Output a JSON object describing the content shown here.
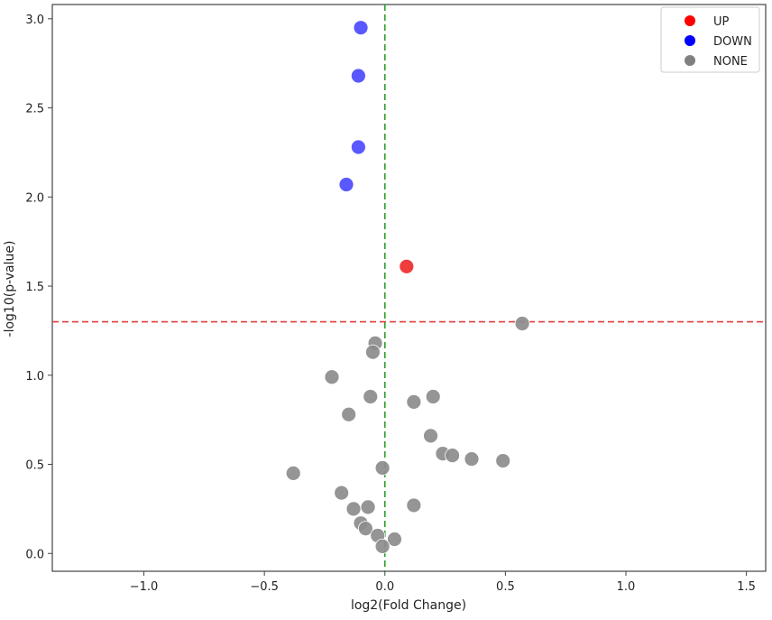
{
  "chart_data": {
    "type": "scatter",
    "title": "",
    "xlabel": "log2(Fold Change)",
    "ylabel": "-log10(p-value)",
    "xlim": [
      -1.38,
      1.58
    ],
    "ylim": [
      -0.1,
      3.08
    ],
    "x_ticks": [
      -1.0,
      -0.5,
      0.0,
      0.5,
      1.0,
      1.5
    ],
    "x_tick_labels": [
      "−1.0",
      "−0.5",
      "0.0",
      "0.5",
      "1.0",
      "1.5"
    ],
    "y_ticks": [
      0.0,
      0.5,
      1.0,
      1.5,
      2.0,
      2.5,
      3.0
    ],
    "y_tick_labels": [
      "0.0",
      "0.5",
      "1.0",
      "1.5",
      "2.0",
      "2.5",
      "3.0"
    ],
    "grid": false,
    "legend_position": "top-right",
    "threshold_lines": [
      {
        "orientation": "horizontal",
        "value": 1.3,
        "color": "#e03b3b",
        "style": "dashed"
      },
      {
        "orientation": "vertical",
        "value": 0.0,
        "color": "#2ca02c",
        "style": "dashed"
      }
    ],
    "series": [
      {
        "name": "UP",
        "color": "#ee2c2c",
        "legend_color": "#ff0000",
        "points": [
          [
            0.09,
            1.61
          ]
        ]
      },
      {
        "name": "DOWN",
        "color": "#4b4bff",
        "legend_color": "#0000ff",
        "points": [
          [
            -0.1,
            2.95
          ],
          [
            -0.11,
            2.68
          ],
          [
            -0.11,
            2.28
          ],
          [
            -0.16,
            2.07
          ]
        ]
      },
      {
        "name": "NONE",
        "color": "#8c8c8c",
        "legend_color": "#808080",
        "points": [
          [
            0.57,
            1.29
          ],
          [
            -0.04,
            1.18
          ],
          [
            -0.05,
            1.13
          ],
          [
            -0.22,
            0.99
          ],
          [
            -0.06,
            0.88
          ],
          [
            0.12,
            0.85
          ],
          [
            0.2,
            0.88
          ],
          [
            -0.15,
            0.78
          ],
          [
            0.19,
            0.66
          ],
          [
            0.24,
            0.56
          ],
          [
            0.28,
            0.55
          ],
          [
            0.36,
            0.53
          ],
          [
            0.49,
            0.52
          ],
          [
            -0.01,
            0.48
          ],
          [
            -0.38,
            0.45
          ],
          [
            -0.18,
            0.34
          ],
          [
            -0.07,
            0.26
          ],
          [
            -0.13,
            0.25
          ],
          [
            0.12,
            0.27
          ],
          [
            -0.1,
            0.17
          ],
          [
            -0.08,
            0.14
          ],
          [
            -0.03,
            0.1
          ],
          [
            0.04,
            0.08
          ],
          [
            -0.01,
            0.04
          ]
        ]
      }
    ]
  }
}
